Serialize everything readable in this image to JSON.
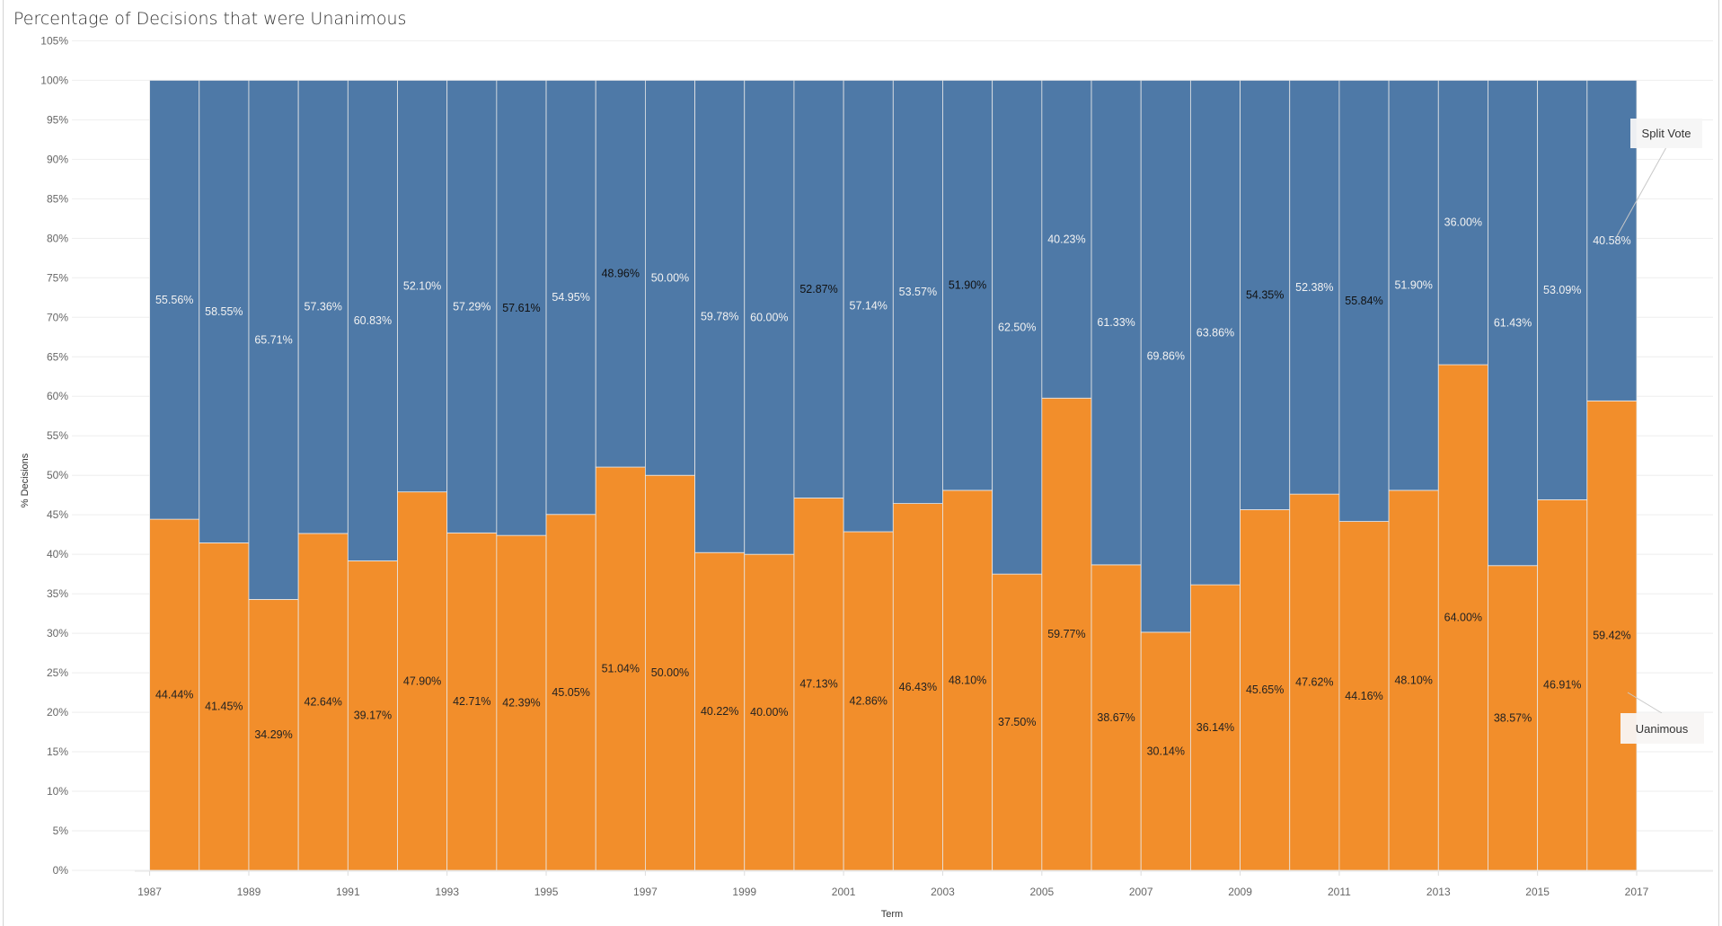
{
  "chart_data": {
    "type": "bar",
    "stacked": true,
    "title": "Percentage of Decisions that were Unanimous",
    "xlabel": "Term",
    "ylabel": "% Decisions",
    "ylim": [
      0,
      105
    ],
    "yticks": [
      "0%",
      "5%",
      "10%",
      "15%",
      "20%",
      "25%",
      "30%",
      "35%",
      "40%",
      "45%",
      "50%",
      "55%",
      "60%",
      "65%",
      "70%",
      "75%",
      "80%",
      "85%",
      "90%",
      "95%",
      "100%",
      "105%"
    ],
    "xlim": [
      1987,
      2017
    ],
    "xticks": [
      "1987",
      "1989",
      "1991",
      "1993",
      "1995",
      "1997",
      "1999",
      "2001",
      "2003",
      "2005",
      "2007",
      "2009",
      "2011",
      "2013",
      "2015",
      "2017"
    ],
    "grid": true,
    "categories": [
      1987,
      1988,
      1989,
      1990,
      1991,
      1992,
      1993,
      1994,
      1995,
      1996,
      1997,
      1998,
      1999,
      2000,
      2001,
      2002,
      2003,
      2004,
      2005,
      2006,
      2007,
      2008,
      2009,
      2010,
      2011,
      2012,
      2013,
      2014,
      2015,
      2016
    ],
    "series": [
      {
        "name": "Uanimous",
        "color": "#f28e2b",
        "values": [
          44.44,
          41.45,
          34.29,
          42.64,
          39.17,
          47.9,
          42.71,
          42.39,
          45.05,
          51.04,
          50.0,
          40.22,
          40.0,
          47.13,
          42.86,
          46.43,
          48.1,
          37.5,
          59.77,
          38.67,
          30.14,
          36.14,
          45.65,
          47.62,
          44.16,
          48.1,
          64.0,
          38.57,
          46.91,
          59.42
        ]
      },
      {
        "name": "Split Vote",
        "color": "#4e79a7",
        "values": [
          55.56,
          58.55,
          65.71,
          57.36,
          60.83,
          52.1,
          57.29,
          57.61,
          54.95,
          48.96,
          50.0,
          59.78,
          60.0,
          52.87,
          57.14,
          53.57,
          51.9,
          62.5,
          40.23,
          61.33,
          69.86,
          63.86,
          54.35,
          52.38,
          55.84,
          51.9,
          36.0,
          61.43,
          53.09,
          40.58
        ]
      }
    ],
    "legend": "inline annotations at right"
  }
}
